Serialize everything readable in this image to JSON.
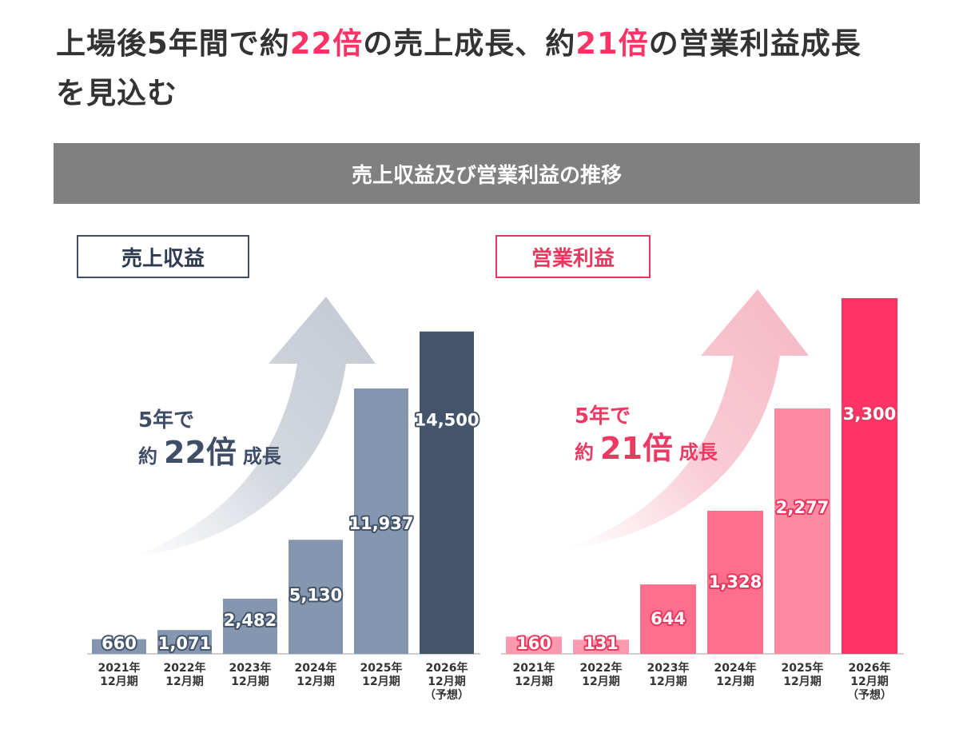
{
  "headline": {
    "part1": "上場後5年間で約",
    "hl1": "22倍",
    "part2": "の売上成長、約",
    "hl2": "21倍",
    "part3": "の営業利益成長",
    "part4": "を見込む"
  },
  "banner": "売上収益及び営業利益の推移",
  "colors": {
    "accent": "#ff3366",
    "revenue_bar": "#8496b0",
    "revenue_forecast": "#44546a",
    "operating_profit_forecast": "#ff3366"
  },
  "panels": {
    "revenue": {
      "label": "売上収益",
      "growth_line1": "5年で",
      "growth_prefix": "約",
      "growth_value": "22倍",
      "growth_suffix": "成長"
    },
    "operating_profit": {
      "label": "営業利益",
      "growth_line1": "5年で",
      "growth_prefix": "約",
      "growth_value": "21倍",
      "growth_suffix": "成長"
    }
  },
  "chart_data": [
    {
      "type": "bar",
      "title": "売上収益",
      "categories": [
        [
          "2021年",
          "12月期"
        ],
        [
          "2022年",
          "12月期"
        ],
        [
          "2023年",
          "12月期"
        ],
        [
          "2024年",
          "12月期"
        ],
        [
          "2025年",
          "12月期"
        ],
        [
          "2026年",
          "12月期",
          "（予想）"
        ]
      ],
      "values": [
        660,
        1071,
        2482,
        5130,
        11937,
        14500
      ],
      "labels": [
        "660",
        "1,071",
        "2,482",
        "5,130",
        "11,937",
        "14,500"
      ],
      "ylim": [
        0,
        16000
      ]
    },
    {
      "type": "bar",
      "title": "営業利益",
      "categories": [
        [
          "2021年",
          "12月期"
        ],
        [
          "2022年",
          "12月期"
        ],
        [
          "2023年",
          "12月期"
        ],
        [
          "2024年",
          "12月期"
        ],
        [
          "2025年",
          "12月期"
        ],
        [
          "2026年",
          "12月期",
          "（予想）"
        ]
      ],
      "values": [
        160,
        131,
        644,
        1328,
        2277,
        3300
      ],
      "labels": [
        "160",
        "131",
        "644",
        "1,328",
        "2,277",
        "3,300"
      ],
      "ylim": [
        0,
        3300
      ]
    }
  ]
}
